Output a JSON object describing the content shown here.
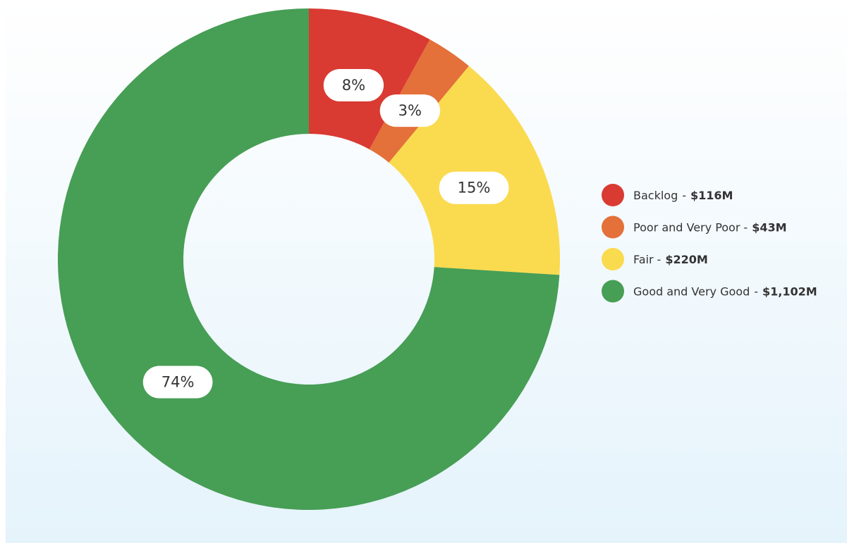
{
  "chart_data": {
    "type": "donut",
    "categories": [
      "Backlog",
      "Poor and Very Poor",
      "Fair",
      "Good and Very Good"
    ],
    "values": [
      8,
      3,
      15,
      74
    ],
    "value_labels": [
      "8%",
      "3%",
      "15%",
      "74%"
    ],
    "colors": [
      "#d93a32",
      "#e4703a",
      "#fadb4f",
      "#479e55"
    ],
    "separator": "-",
    "amounts": [
      {
        "value": 116,
        "label": "$116M"
      },
      {
        "value": 43,
        "label": "$43M"
      },
      {
        "value": 220,
        "label": "$220M"
      },
      {
        "value": 1102,
        "label": "$1,102M"
      }
    ]
  }
}
